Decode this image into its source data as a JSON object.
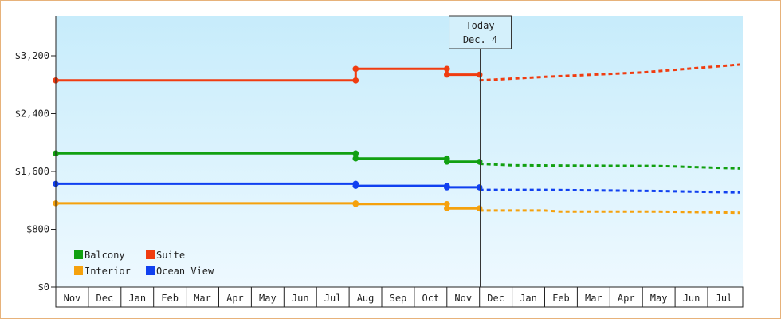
{
  "chart_data": {
    "type": "line",
    "title": "",
    "xlabel": "",
    "ylabel": "",
    "ylim": [
      0,
      3200
    ],
    "y_ticks": [
      "$0",
      "$800",
      "$1,600",
      "$2,400",
      "$3,200"
    ],
    "y_tick_values": [
      0,
      800,
      1600,
      2400,
      3200
    ],
    "month_labels": [
      "Nov",
      "Dec",
      "Jan",
      "Feb",
      "Mar",
      "Apr",
      "May",
      "Jun",
      "Jul",
      "Aug",
      "Sep",
      "Oct",
      "Nov",
      "Dec",
      "Jan",
      "Feb",
      "Mar",
      "Apr",
      "May",
      "Jun",
      "Jul"
    ],
    "x_range_months": [
      0,
      21
    ],
    "grid": false,
    "background": "gradient light blue",
    "today_marker": {
      "line1": "Today",
      "line2": "Dec. 4",
      "x_month": 13.02
    },
    "legend_placement": "bottom-left",
    "series": [
      {
        "name": "Balcony",
        "color": "#11a011",
        "historical": [
          [
            0,
            1850
          ],
          [
            9.2,
            1850
          ],
          [
            9.2,
            1780
          ],
          [
            12.0,
            1780
          ],
          [
            12.0,
            1735
          ],
          [
            13.0,
            1735
          ]
        ],
        "forecast": [
          [
            13.0,
            1705
          ],
          [
            14.0,
            1685
          ],
          [
            16.0,
            1680
          ],
          [
            18.5,
            1675
          ],
          [
            21.0,
            1640
          ]
        ]
      },
      {
        "name": "Suite",
        "color": "#f03c10",
        "historical": [
          [
            0,
            2860
          ],
          [
            9.2,
            2860
          ],
          [
            9.2,
            3020
          ],
          [
            12.0,
            3020
          ],
          [
            12.0,
            2940
          ],
          [
            13.0,
            2940
          ]
        ],
        "forecast": [
          [
            13.0,
            2860
          ],
          [
            15.0,
            2910
          ],
          [
            18.0,
            2970
          ],
          [
            21.0,
            3080
          ]
        ]
      },
      {
        "name": "Interior",
        "color": "#f5a10d",
        "historical": [
          [
            0,
            1160
          ],
          [
            9.2,
            1160
          ],
          [
            9.2,
            1150
          ],
          [
            12.0,
            1150
          ],
          [
            12.0,
            1090
          ],
          [
            13.0,
            1090
          ]
        ],
        "forecast": [
          [
            13.0,
            1060
          ],
          [
            15.0,
            1060
          ],
          [
            15.5,
            1045
          ],
          [
            18.5,
            1045
          ],
          [
            21.0,
            1030
          ]
        ]
      },
      {
        "name": "Ocean View",
        "color": "#1040f0",
        "historical": [
          [
            0,
            1430
          ],
          [
            9.2,
            1430
          ],
          [
            9.2,
            1400
          ],
          [
            12.0,
            1400
          ],
          [
            12.0,
            1380
          ],
          [
            13.0,
            1380
          ]
        ],
        "forecast": [
          [
            13.0,
            1345
          ],
          [
            15.0,
            1345
          ],
          [
            18.5,
            1330
          ],
          [
            21.0,
            1310
          ]
        ]
      }
    ]
  }
}
